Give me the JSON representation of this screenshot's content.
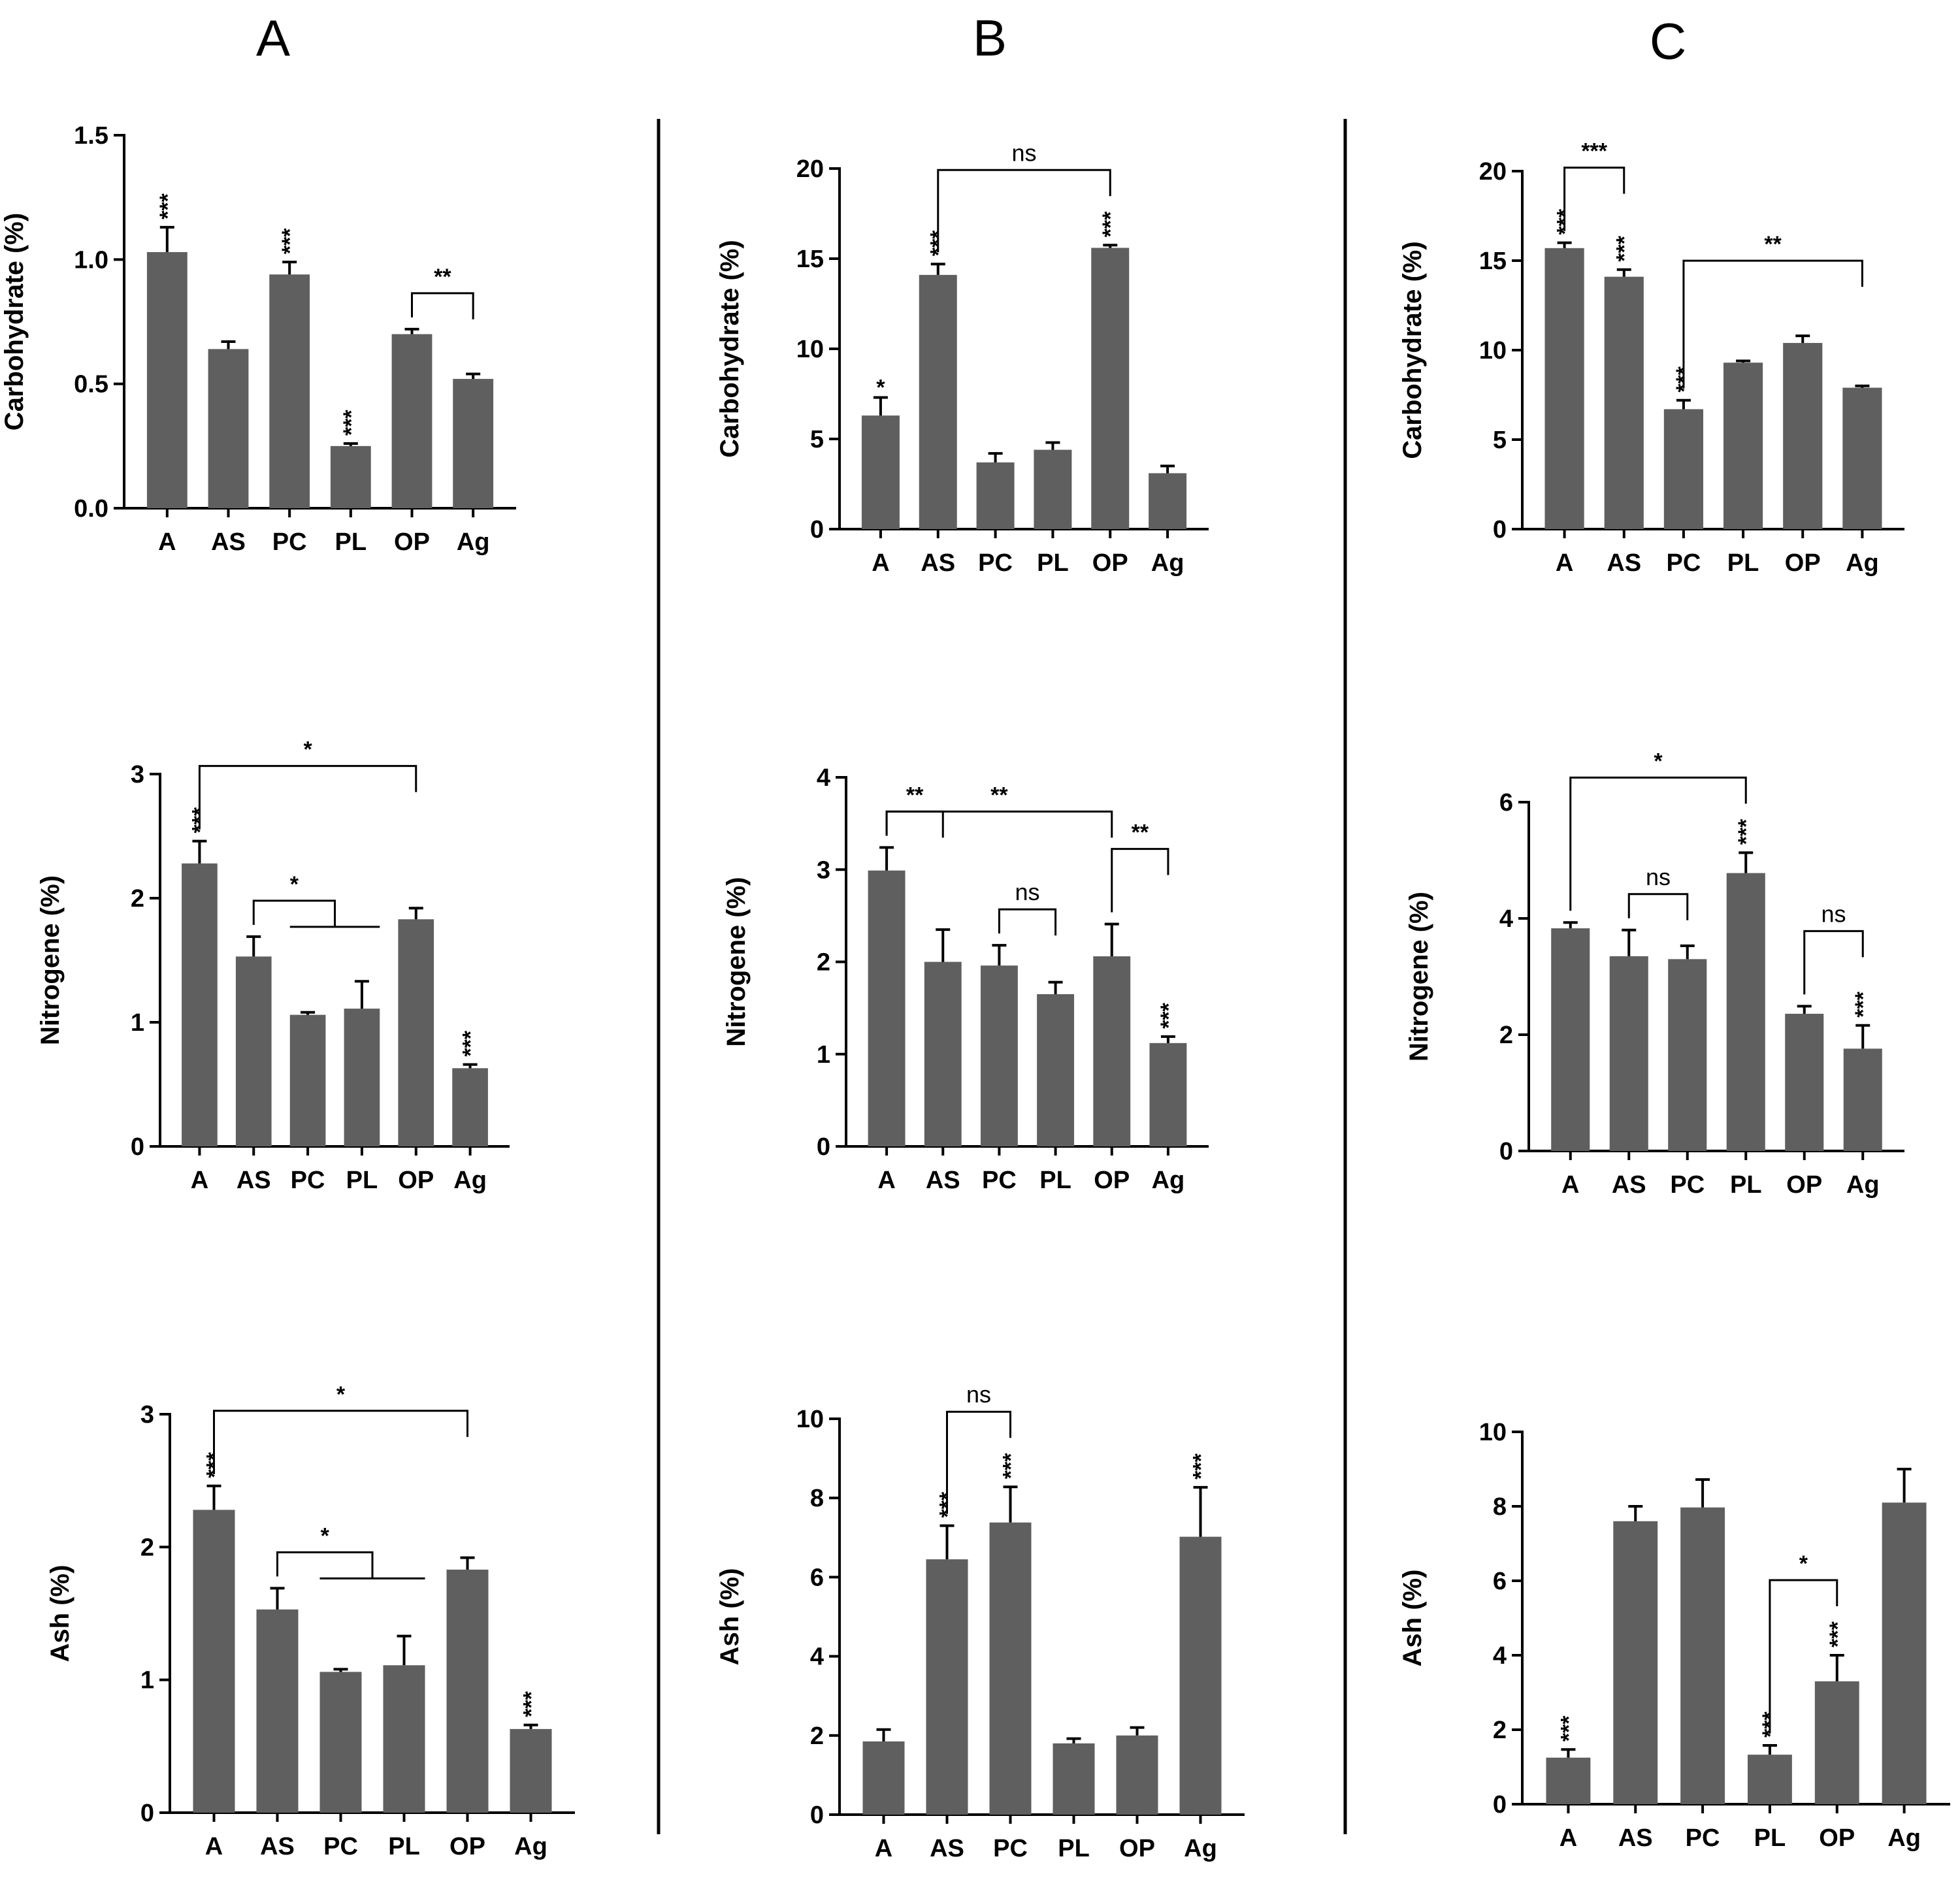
{
  "column_titles": [
    "A",
    "B",
    "C"
  ],
  "chart_data": [
    {
      "id": "A1",
      "type": "bar",
      "title": "",
      "ylabel": "Carbohydrate (%)",
      "ylim": [
        0,
        1.5
      ],
      "yticks": [
        "0.0",
        "0.5",
        "1.0",
        "1.5"
      ],
      "categories": [
        "A",
        "AS",
        "PC",
        "PL",
        "OP",
        "Ag"
      ],
      "values": [
        1.03,
        0.64,
        0.94,
        0.25,
        0.7,
        0.52
      ],
      "errors": [
        0.1,
        0.03,
        0.05,
        0.01,
        0.02,
        0.02
      ],
      "bar_labels": [
        "***",
        "",
        "***",
        "***",
        "",
        ""
      ],
      "brackets": [
        {
          "from": 4,
          "to": 5,
          "label": "**"
        }
      ]
    },
    {
      "id": "B1",
      "type": "bar",
      "title": "",
      "ylabel": "Carbohydrate (%)",
      "ylim": [
        0,
        20
      ],
      "yticks": [
        "0",
        "5",
        "10",
        "15",
        "20"
      ],
      "categories": [
        "A",
        "AS",
        "PC",
        "PL",
        "OP",
        "Ag"
      ],
      "values": [
        6.3,
        14.1,
        3.7,
        4.4,
        15.6,
        3.1
      ],
      "errors": [
        1.0,
        0.6,
        0.5,
        0.4,
        0.15,
        0.4
      ],
      "bar_labels": [
        "*",
        "***",
        "",
        "",
        "***",
        ""
      ],
      "brackets": [
        {
          "from": 1,
          "to": 4,
          "label": "ns"
        }
      ]
    },
    {
      "id": "C1",
      "type": "bar",
      "title": "",
      "ylabel": "Carbohydrate (%)",
      "ylim": [
        0,
        20
      ],
      "yticks": [
        "0",
        "5",
        "10",
        "15",
        "20"
      ],
      "categories": [
        "A",
        "AS",
        "PC",
        "PL",
        "OP",
        "Ag"
      ],
      "values": [
        15.7,
        14.1,
        6.7,
        9.3,
        10.4,
        7.9
      ],
      "errors": [
        0.3,
        0.4,
        0.5,
        0.1,
        0.4,
        0.1
      ],
      "bar_labels": [
        "***",
        "***",
        "***",
        "",
        "",
        ""
      ],
      "brackets": [
        {
          "from": 0,
          "to": 1,
          "label": "***"
        },
        {
          "from": 2,
          "to": 5,
          "label": "**"
        }
      ]
    },
    {
      "id": "A2",
      "type": "bar",
      "title": "",
      "ylabel": "Nitrogene (%)",
      "ylim": [
        0,
        3
      ],
      "yticks": [
        "0",
        "1",
        "2",
        "3"
      ],
      "categories": [
        "A",
        "AS",
        "PC",
        "PL",
        "OP",
        "Ag"
      ],
      "values": [
        2.28,
        1.53,
        1.06,
        1.11,
        1.83,
        0.63
      ],
      "errors": [
        0.18,
        0.16,
        0.02,
        0.22,
        0.09,
        0.03
      ],
      "bar_labels": [
        "***",
        "",
        "",
        "",
        "",
        "***"
      ],
      "brackets": [
        {
          "from": 0,
          "to": 4,
          "label": "*"
        },
        {
          "from": 1,
          "to": "g23",
          "label": "*"
        }
      ]
    },
    {
      "id": "B2",
      "type": "bar",
      "title": "",
      "ylabel": "Nitrogene (%)",
      "ylim": [
        0,
        4
      ],
      "yticks": [
        "0",
        "1",
        "2",
        "3",
        "4"
      ],
      "categories": [
        "A",
        "AS",
        "PC",
        "PL",
        "OP",
        "Ag"
      ],
      "values": [
        2.99,
        2.0,
        1.96,
        1.65,
        2.06,
        1.12
      ],
      "errors": [
        0.25,
        0.35,
        0.22,
        0.13,
        0.35,
        0.07
      ],
      "bar_labels": [
        "",
        "",
        "",
        "",
        "",
        "***"
      ],
      "brackets": [
        {
          "from": 0,
          "to": 1,
          "label": "**"
        },
        {
          "from": 0,
          "to": 4,
          "label": "**"
        },
        {
          "from": 2,
          "to": 3,
          "label": "ns"
        },
        {
          "from": 4,
          "to": 5,
          "label": "**"
        }
      ]
    },
    {
      "id": "C2",
      "type": "bar",
      "title": "",
      "ylabel": "Nitrogene (%)",
      "ylim": [
        0,
        6
      ],
      "yticks": [
        "0",
        "2",
        "4",
        "6"
      ],
      "categories": [
        "A",
        "AS",
        "PC",
        "PL",
        "OP",
        "Ag"
      ],
      "values": [
        3.83,
        3.35,
        3.3,
        4.78,
        2.36,
        1.76
      ],
      "errors": [
        0.1,
        0.45,
        0.23,
        0.35,
        0.13,
        0.4
      ],
      "bar_labels": [
        "",
        "",
        "",
        "***",
        "",
        "***"
      ],
      "brackets": [
        {
          "from": 0,
          "to": 3,
          "label": "*"
        },
        {
          "from": 1,
          "to": 2,
          "label": "ns"
        },
        {
          "from": 4,
          "to": 5,
          "label": "ns"
        }
      ]
    },
    {
      "id": "A3",
      "type": "bar",
      "title": "",
      "ylabel": "Ash (%)",
      "ylim": [
        0,
        3
      ],
      "yticks": [
        "0",
        "1",
        "2",
        "3"
      ],
      "categories": [
        "A",
        "AS",
        "PC",
        "PL",
        "OP",
        "Ag"
      ],
      "values": [
        2.28,
        1.53,
        1.06,
        1.11,
        1.83,
        0.63
      ],
      "errors": [
        0.18,
        0.16,
        0.02,
        0.22,
        0.09,
        0.03
      ],
      "bar_labels": [
        "***",
        "",
        "",
        "",
        "",
        "***"
      ],
      "brackets": [
        {
          "from": 0,
          "to": 4,
          "label": "*"
        },
        {
          "from": 1,
          "to": "g23",
          "label": "*"
        }
      ]
    },
    {
      "id": "B3",
      "type": "bar",
      "title": "",
      "ylabel": "Ash (%)",
      "ylim": [
        0,
        10
      ],
      "yticks": [
        "0",
        "2",
        "4",
        "6",
        "8",
        "10"
      ],
      "categories": [
        "A",
        "AS",
        "PC",
        "PL",
        "OP",
        "Ag"
      ],
      "values": [
        1.85,
        6.45,
        7.38,
        1.8,
        2.0,
        7.02
      ],
      "errors": [
        0.3,
        0.85,
        0.9,
        0.12,
        0.2,
        1.25
      ],
      "bar_labels": [
        "",
        "***",
        "***",
        "",
        "",
        "***"
      ],
      "brackets": [
        {
          "from": 1,
          "to": 2,
          "label": "ns"
        }
      ]
    },
    {
      "id": "C3",
      "type": "bar",
      "title": "",
      "ylabel": "Ash (%)",
      "ylim": [
        0,
        10
      ],
      "yticks": [
        "0",
        "2",
        "4",
        "6",
        "8",
        "10"
      ],
      "categories": [
        "A",
        "AS",
        "PC",
        "PL",
        "OP",
        "Ag"
      ],
      "values": [
        1.25,
        7.6,
        7.97,
        1.33,
        3.3,
        8.1
      ],
      "errors": [
        0.22,
        0.4,
        0.75,
        0.25,
        0.7,
        0.9
      ],
      "bar_labels": [
        "***",
        "",
        "",
        "***",
        "***",
        ""
      ],
      "brackets": [
        {
          "from": 3,
          "to": 4,
          "label": "*"
        }
      ]
    }
  ]
}
